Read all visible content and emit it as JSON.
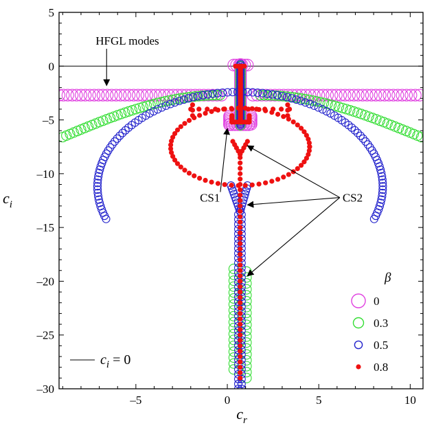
{
  "chart_data": {
    "type": "scatter",
    "xlabel_main": "c",
    "xlabel_sub": "r",
    "ylabel_main": "c",
    "ylabel_sub": "i",
    "xlim": [
      -9.2,
      10.7
    ],
    "ylim": [
      -30,
      5
    ],
    "x_ticks": [
      -5,
      0,
      5,
      10
    ],
    "x_tick_labels": [
      "–5",
      "0",
      "5",
      "10"
    ],
    "y_ticks": [
      5,
      0,
      -5,
      -10,
      -15,
      -20,
      -25,
      -30
    ],
    "y_tick_labels": [
      "5",
      "0",
      "–5",
      "–10",
      "–15",
      "–20",
      "–25",
      "–30"
    ],
    "zero_line": 0,
    "legend": {
      "title": "β",
      "placement": "bottom-right",
      "entries": [
        {
          "label": "0",
          "color": "#e040e0",
          "marker": "open-circle"
        },
        {
          "label": "0.3",
          "color": "#33dd33",
          "marker": "open-circle"
        },
        {
          "label": "0.5",
          "color": "#2222cc",
          "marker": "open-circle"
        },
        {
          "label": "0.8",
          "color": "#ee1111",
          "marker": "filled-circle"
        }
      ]
    },
    "zero_line_legend": {
      "main": "c",
      "sub": "i",
      "rest": " = 0"
    },
    "annotations": [
      {
        "text": "HFGL modes",
        "x": -7.2,
        "y": 2.0,
        "arrow_to": [
          -6.6,
          -1.8
        ]
      },
      {
        "text": "CS1",
        "x": -1.5,
        "y": -12.6,
        "arrow_to": [
          0.0,
          -5.8
        ]
      },
      {
        "text": "CS2",
        "x": 6.3,
        "y": -12.6,
        "arrow_to": [
          [
            1.1,
            -7.4
          ],
          [
            1.1,
            -12.9
          ],
          [
            1.1,
            -19.5
          ]
        ]
      }
    ],
    "series": [
      {
        "label": "0",
        "color": "#e040e0",
        "shapes": [
          {
            "kind": "horizontal",
            "y": -2.7,
            "x_from": -9.2,
            "x_to": -0.2,
            "step": 0.24
          },
          {
            "kind": "horizontal",
            "y": -2.7,
            "x_from": 1.4,
            "x_to": 10.7,
            "step": 0.24
          },
          {
            "kind": "vertical",
            "x": 0.72,
            "y_from": -5.4,
            "y_to": 0.2,
            "step": 0.15
          },
          {
            "kind": "vertical",
            "x": 0.12,
            "y_from": -5.4,
            "y_to": -4.6,
            "step": 0.15
          },
          {
            "kind": "vertical",
            "x": 1.3,
            "y_from": -5.4,
            "y_to": -4.6,
            "step": 0.15
          },
          {
            "kind": "horizontal",
            "y": -5.45,
            "x_from": 0.12,
            "x_to": 1.3,
            "step": 0.15
          },
          {
            "kind": "horizontal",
            "y": 0.1,
            "x_from": 0.35,
            "x_to": 1.1,
            "step": 0.15
          }
        ],
        "radius": 8.5
      },
      {
        "label": "0.3",
        "color": "#33dd33",
        "shapes": [
          {
            "kind": "arc",
            "x_from": -9.0,
            "x_to": -0.4,
            "y_from": -6.6,
            "y_to": -2.7,
            "n": 44
          },
          {
            "kind": "arc",
            "x_from": 10.6,
            "x_to": 1.8,
            "y_from": -6.6,
            "y_to": -2.7,
            "n": 44
          },
          {
            "kind": "vertical",
            "x": 0.35,
            "y_from": -28.2,
            "y_to": -18.6,
            "step": 0.55
          },
          {
            "kind": "vertical",
            "x": 1.05,
            "y_from": -29.0,
            "y_to": -18.6,
            "step": 0.55
          },
          {
            "kind": "vertical",
            "x": 0.72,
            "y_from": -5.5,
            "y_to": 0.2,
            "step": 0.25
          }
        ],
        "radius": 7.0
      },
      {
        "label": "0.5",
        "color": "#2222cc",
        "shapes": [
          {
            "kind": "ellipse",
            "cx": 0.7,
            "cy": -11.2,
            "rx": 7.8,
            "ry": 8.8,
            "t_from": 200,
            "t_to": -20,
            "n": 110
          },
          {
            "kind": "vertical",
            "x": 0.6,
            "y_from": -30.0,
            "y_to": -13.5,
            "step": 0.45
          },
          {
            "kind": "vertical",
            "x": 0.78,
            "y_from": -30.0,
            "y_to": -13.5,
            "step": 0.45
          },
          {
            "kind": "vee",
            "x_left": 0.2,
            "x_right": 1.1,
            "x_mid": 0.7,
            "y_top": -11.1,
            "y_bottom": -13.5,
            "n": 10
          },
          {
            "kind": "vertical",
            "x": 0.72,
            "y_from": -5.5,
            "y_to": 0.2,
            "step": 0.15
          }
        ],
        "radius": 5.5
      },
      {
        "label": "0.8",
        "color": "#ee1111",
        "shapes": [
          {
            "kind": "ellipse",
            "cx": 0.7,
            "cy": -7.5,
            "rx": 3.8,
            "ry": 3.6,
            "t_from": 0,
            "t_to": 360,
            "n": 64
          },
          {
            "kind": "vertical",
            "x": 0.7,
            "y_from": -29.0,
            "y_to": -8.2,
            "step": 0.5
          },
          {
            "kind": "vee",
            "x_left": 0.3,
            "x_right": 1.1,
            "x_mid": 0.7,
            "y_top": -7.0,
            "y_bottom": -8.2,
            "n": 5
          },
          {
            "kind": "vertical",
            "x": 0.72,
            "y_from": -5.2,
            "y_to": 0.0,
            "step": 0.12
          },
          {
            "kind": "vertical",
            "x": 0.25,
            "y_from": -5.2,
            "y_to": -4.5,
            "step": 0.12
          },
          {
            "kind": "vertical",
            "x": 1.2,
            "y_from": -5.2,
            "y_to": -4.5,
            "step": 0.12
          },
          {
            "kind": "horizontal",
            "y": -5.2,
            "x_from": 0.25,
            "x_to": 1.2,
            "step": 0.12
          },
          {
            "kind": "horizontal",
            "y": 0.0,
            "x_from": 0.45,
            "x_to": 1.0,
            "step": 0.12
          },
          {
            "kind": "horizontal",
            "y": -4.0,
            "x_from": -2.0,
            "x_to": 3.4,
            "step": 0.45
          },
          {
            "kind": "vertical",
            "x": -1.9,
            "y_from": -4.6,
            "y_to": -3.6,
            "step": 0.5
          },
          {
            "kind": "vertical",
            "x": 3.3,
            "y_from": -4.6,
            "y_to": -3.6,
            "step": 0.5
          }
        ],
        "radius": 3.6,
        "filled": true
      }
    ]
  }
}
